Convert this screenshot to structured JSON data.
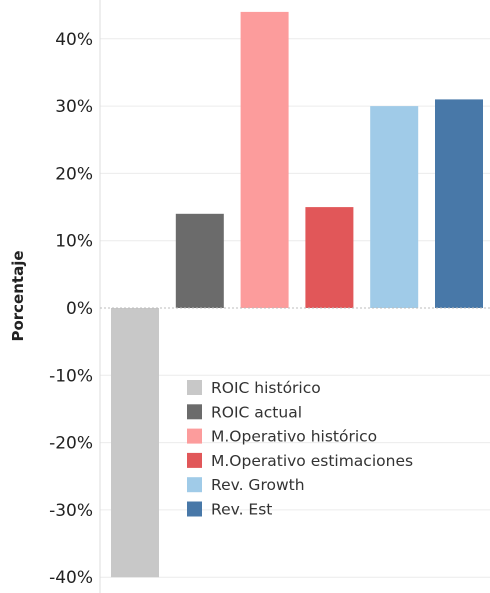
{
  "chart_data": {
    "type": "bar",
    "ylabel": "Porcentaje",
    "ylim": [
      -0.4,
      0.45
    ],
    "yticks": [
      -0.4,
      -0.3,
      -0.2,
      -0.1,
      0,
      0.1,
      0.2,
      0.3,
      0.4
    ],
    "ytick_labels": [
      "-40%",
      "-30%",
      "-20%",
      "-10%",
      "0%",
      "10%",
      "20%",
      "30%",
      "40%"
    ],
    "grid": true,
    "legend_position": "lower-center",
    "series": [
      {
        "name": "ROIC histórico",
        "value": -0.4,
        "color": "#c8c8c8"
      },
      {
        "name": "ROIC actual",
        "value": 0.14,
        "color": "#6b6b6b"
      },
      {
        "name": "M.Operativo histórico",
        "value": 0.44,
        "color": "#fc9c9c"
      },
      {
        "name": "M.Operativo estimaciones",
        "value": 0.15,
        "color": "#e15759"
      },
      {
        "name": "Rev. Growth",
        "value": 0.3,
        "color": "#a0cbe8"
      },
      {
        "name": "Rev. Est",
        "value": 0.31,
        "color": "#4878a8"
      }
    ]
  }
}
